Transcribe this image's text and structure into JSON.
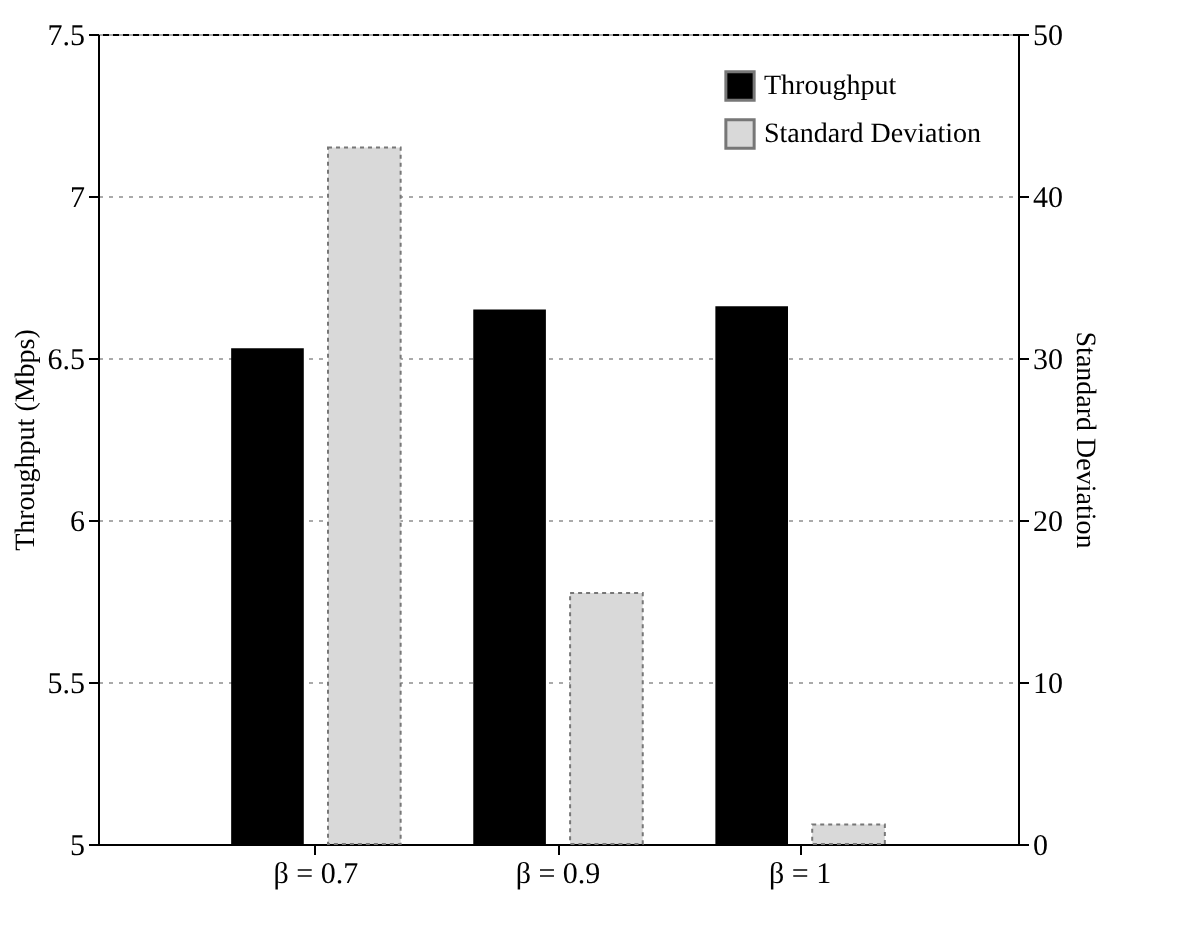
{
  "chart_data": {
    "type": "bar",
    "categories": [
      "β = 0.7",
      "β = 0.9",
      "β = 1"
    ],
    "series": [
      {
        "name": "Throughput",
        "color": "#000000",
        "values": [
          6.53,
          6.65,
          6.66
        ]
      },
      {
        "name": "Standard Deviation",
        "color": "#d9d9d9",
        "values": [
          43,
          15.5,
          1.2
        ],
        "axis": "y2"
      }
    ],
    "ylabel": "Throughput (Mbps)",
    "y2label": "Standard Deviation",
    "ylim": [
      5,
      7.5
    ],
    "yticks": [
      5,
      5.5,
      6,
      6.5,
      7,
      7.5
    ],
    "y2lim": [
      0,
      50
    ],
    "y2ticks": [
      0,
      10,
      20,
      30,
      40,
      50
    ],
    "grid": "y",
    "legend": "top right"
  }
}
